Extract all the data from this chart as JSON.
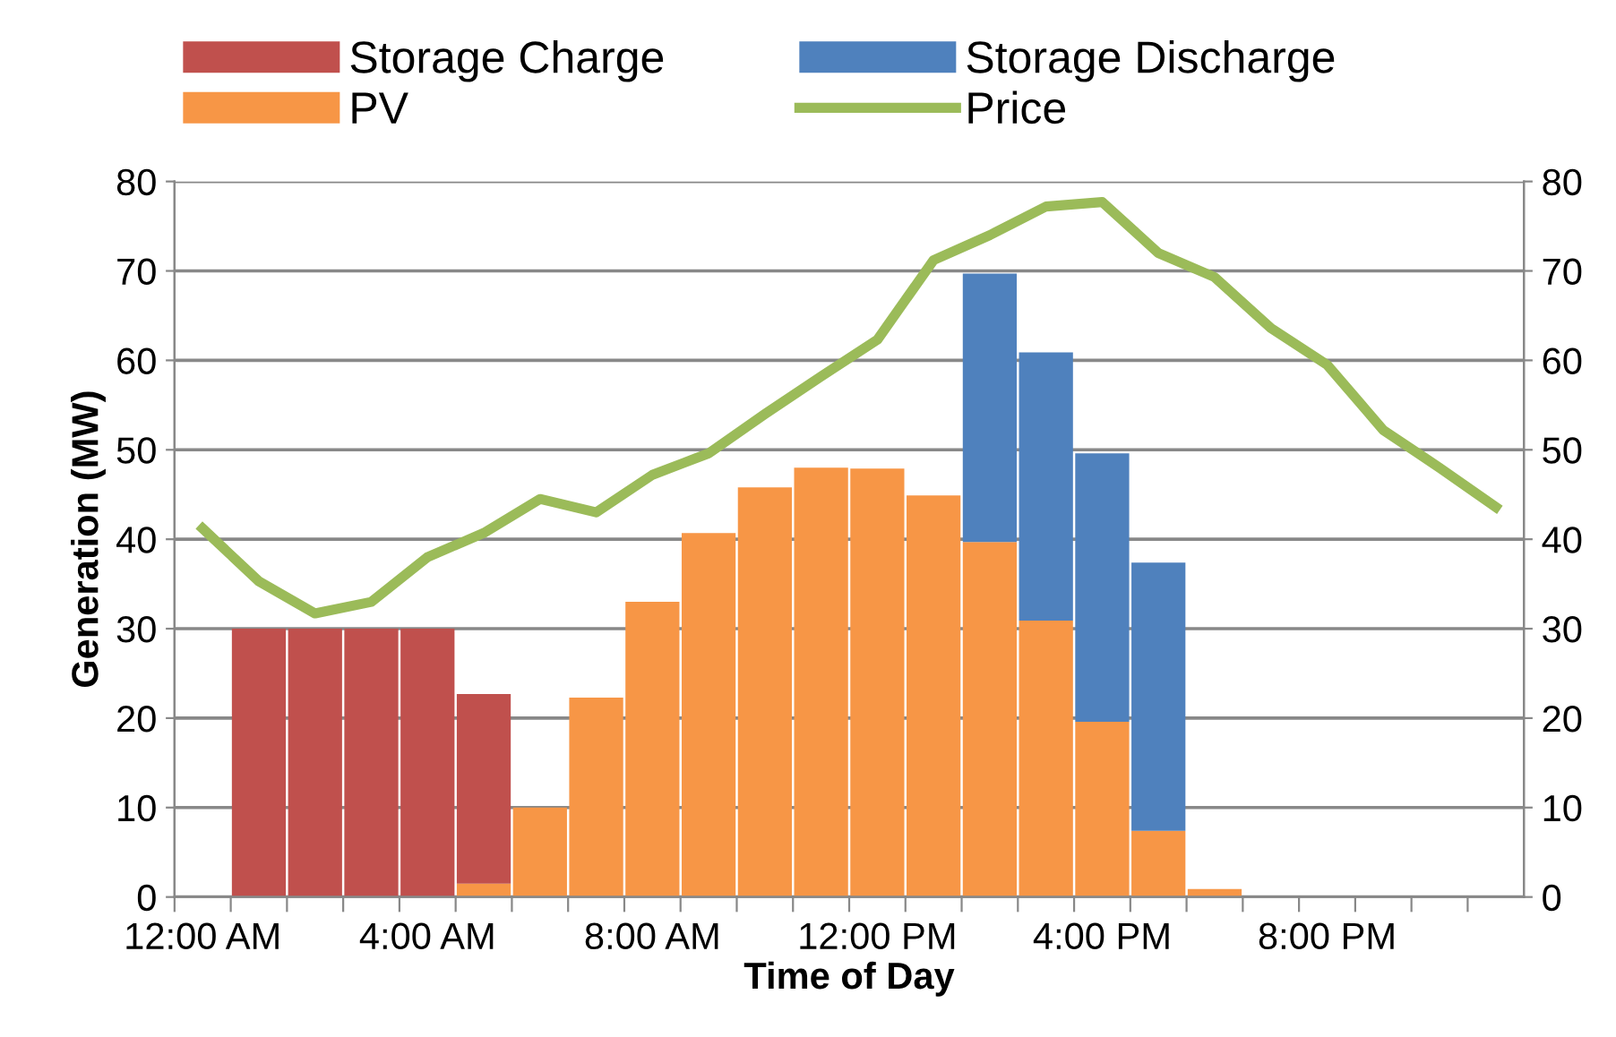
{
  "chart_data": {
    "type": "bar",
    "stacked": true,
    "xlabel": "Time of Day",
    "ylabel": "Generation (MW)",
    "categories": [
      "12:00 AM",
      null,
      null,
      null,
      "4:00 AM",
      null,
      null,
      null,
      "8:00 AM",
      null,
      null,
      null,
      "12:00 PM",
      null,
      null,
      null,
      "4:00 PM",
      null,
      null,
      null,
      "8:00 PM",
      null,
      null,
      null
    ],
    "series": [
      {
        "name": "PV",
        "color": "#f79646",
        "values": [
          0,
          0,
          0,
          0,
          0,
          1.5,
          10.0,
          22.3,
          33.0,
          40.7,
          45.8,
          48.0,
          47.9,
          44.9,
          39.7,
          30.9,
          19.6,
          7.4,
          0.9,
          0,
          0,
          0,
          0,
          0
        ]
      },
      {
        "name": "Storage Charge",
        "color": "#c0504d",
        "values": [
          0,
          30,
          30,
          30,
          30,
          21.2,
          0,
          0,
          0,
          0,
          0,
          0,
          0,
          0,
          0,
          0,
          0,
          0,
          0,
          0,
          0,
          0,
          0,
          0
        ]
      },
      {
        "name": "Storage Discharge",
        "color": "#4f81bd",
        "values": [
          0,
          0,
          0,
          0,
          0,
          0,
          0,
          0,
          0,
          0,
          0,
          0,
          0,
          0,
          30,
          30,
          30,
          30,
          0,
          0,
          0,
          0,
          0,
          0
        ]
      },
      {
        "name": "Price",
        "type": "line",
        "axis": "y2",
        "color": "#9bbb59",
        "values": [
          41.2,
          35.3,
          31.7,
          33.0,
          38.0,
          40.7,
          44.5,
          43.0,
          47.2,
          49.6,
          54.0,
          58.2,
          62.3,
          71.2,
          74.0,
          77.2,
          77.7,
          72.0,
          69.3,
          63.6,
          59.5,
          52.2,
          48.0,
          43.6
        ]
      }
    ],
    "ylim": [
      0,
      80
    ],
    "yticks": [
      0,
      10,
      20,
      30,
      40,
      50,
      60,
      70,
      80
    ],
    "y2lim": [
      0,
      80
    ],
    "y2ticks": [
      0,
      10,
      20,
      30,
      40,
      50,
      60,
      70,
      80
    ],
    "grid": "y",
    "legend": "top",
    "marker": "none",
    "line_style": "solid"
  }
}
